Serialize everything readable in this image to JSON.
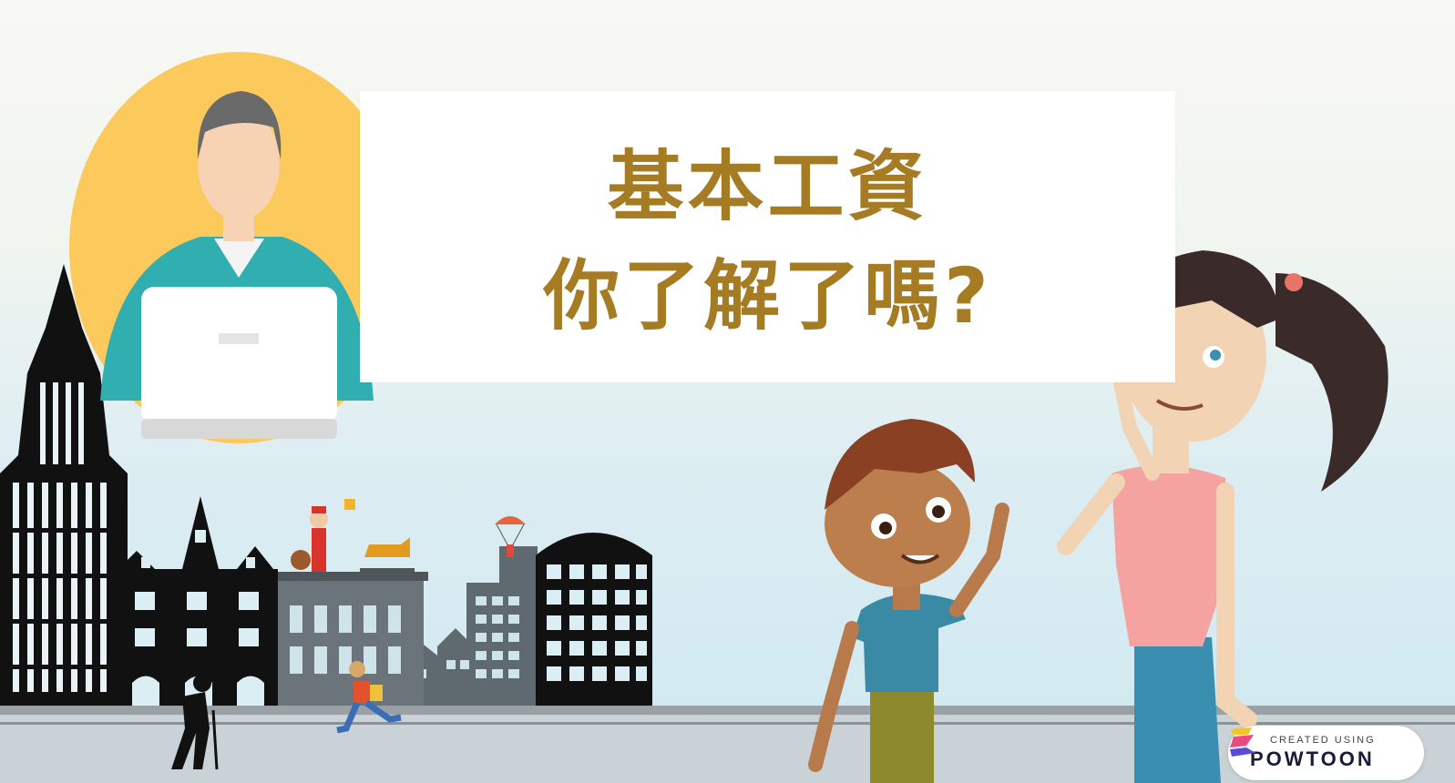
{
  "title": {
    "line1": "基本工資",
    "line2": "你了解了嗎?"
  },
  "badge": {
    "small_text": "CREATED USING",
    "brand_text": "POWTOON"
  },
  "colors": {
    "title_gold": "#a57c24",
    "circle_yellow": "#fbc95c",
    "shirt_teal": "#30aeb0",
    "building_dark": "#111111",
    "building_gray": "#5f6970",
    "ground_gray": "#7a7e82"
  },
  "icons": [
    "person-with-laptop-icon",
    "powtoon-logo-icon"
  ]
}
